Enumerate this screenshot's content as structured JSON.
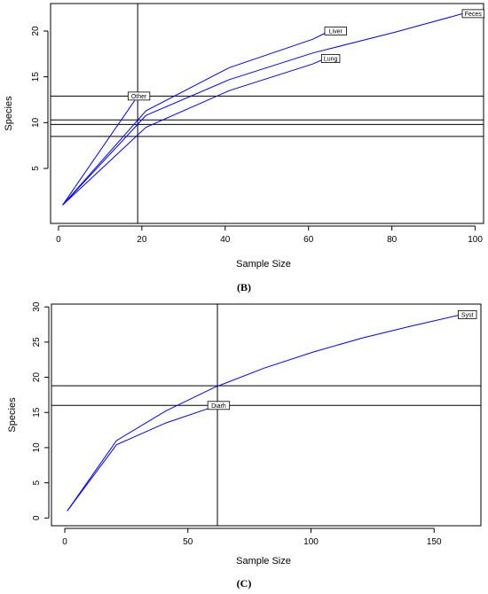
{
  "panels": [
    {
      "panel_label": "(B)",
      "chart_data": {
        "type": "line",
        "title": "",
        "xlabel": "Sample Size",
        "ylabel": "Species",
        "xlim": [
          -1.9,
          102
        ],
        "ylim": [
          -1,
          23
        ],
        "xticks": [
          0,
          20,
          40,
          60,
          80,
          100
        ],
        "yticks": [
          5,
          10,
          15,
          20
        ],
        "series": [
          {
            "name": "Feces",
            "color": "#0000ff",
            "points": [
              [
                1,
                1
              ],
              [
                21,
                10.8
              ],
              [
                41,
                14.7
              ],
              [
                61,
                17.6
              ],
              [
                81,
                19.9
              ],
              [
                97,
                21.9
              ]
            ]
          },
          {
            "name": "Liver",
            "color": "#0000ff",
            "points": [
              [
                1,
                1
              ],
              [
                21,
                11.3
              ],
              [
                41,
                16.0
              ],
              [
                61,
                19.1
              ],
              [
                65,
                20.0
              ]
            ]
          },
          {
            "name": "Lung",
            "color": "#0000ff",
            "points": [
              [
                1,
                1
              ],
              [
                21,
                9.5
              ],
              [
                41,
                13.5
              ],
              [
                61,
                16.4
              ],
              [
                64,
                17.0
              ]
            ]
          },
          {
            "name": "Other",
            "color": "#0000ff",
            "points": [
              [
                1,
                1
              ],
              [
                19,
                12.9
              ]
            ]
          }
        ],
        "vlines": [
          19
        ],
        "hlines": [
          8.5,
          9.8,
          10.3,
          12.9
        ],
        "labels": [
          {
            "text": "Feces",
            "x": 99.5,
            "y": 21.9
          },
          {
            "text": "Liver",
            "x": 66.5,
            "y": 20.0
          },
          {
            "text": "Lung",
            "x": 65.3,
            "y": 17.0
          },
          {
            "text": "Other",
            "x": 19.3,
            "y": 12.9
          }
        ],
        "grid": false
      }
    },
    {
      "panel_label": "(C)",
      "chart_data": {
        "type": "line",
        "title": "",
        "xlabel": "Sample Size",
        "ylabel": "Species",
        "xlim": [
          -5.4,
          169
        ],
        "ylim": [
          -1.1,
          30.4
        ],
        "xticks": [
          0,
          50,
          100,
          150
        ],
        "yticks": [
          0,
          5,
          10,
          15,
          20,
          25,
          30
        ],
        "series": [
          {
            "name": "Syst",
            "color": "#0000ff",
            "points": [
              [
                1,
                1
              ],
              [
                21,
                11.0
              ],
              [
                41,
                15.2
              ],
              [
                61,
                18.6
              ],
              [
                81,
                21.3
              ],
              [
                101,
                23.6
              ],
              [
                121,
                25.6
              ],
              [
                141,
                27.3
              ],
              [
                161,
                28.9
              ]
            ]
          },
          {
            "name": "Diarh",
            "color": "#0000ff",
            "points": [
              [
                1,
                1
              ],
              [
                21,
                10.4
              ],
              [
                41,
                13.5
              ],
              [
                62,
                16.0
              ]
            ]
          }
        ],
        "vlines": [
          62
        ],
        "hlines": [
          16.0,
          18.8
        ],
        "labels": [
          {
            "text": "Syst",
            "x": 163.5,
            "y": 28.9
          },
          {
            "text": "Diarh",
            "x": 62.5,
            "y": 16.0
          }
        ],
        "grid": false
      }
    }
  ]
}
